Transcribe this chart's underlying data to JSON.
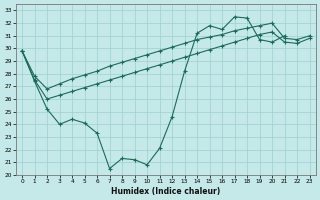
{
  "xlabel": "Humidex (Indice chaleur)",
  "bg_color": "#c5e8e8",
  "grid_color": "#9dcfcf",
  "line_color": "#1a6b5a",
  "xlim": [
    -0.5,
    23.5
  ],
  "ylim": [
    20,
    33.5
  ],
  "yticks": [
    20,
    21,
    22,
    23,
    24,
    25,
    26,
    27,
    28,
    29,
    30,
    31,
    32,
    33
  ],
  "xticks": [
    0,
    1,
    2,
    3,
    4,
    5,
    6,
    7,
    8,
    9,
    10,
    11,
    12,
    13,
    14,
    15,
    16,
    17,
    18,
    19,
    20,
    21,
    22,
    23
  ],
  "zigzag_x": [
    0,
    1,
    2,
    3,
    4,
    5,
    6,
    7,
    8,
    9,
    10,
    11,
    12,
    13,
    14,
    15,
    16,
    17,
    18,
    19,
    20,
    21
  ],
  "zigzag_y": [
    29.8,
    27.4,
    25.2,
    24.0,
    24.4,
    24.1,
    23.3,
    20.5,
    21.3,
    21.2,
    20.8,
    22.1,
    24.6,
    28.2,
    31.2,
    31.8,
    31.5,
    32.5,
    32.4,
    30.7,
    30.5,
    31.0
  ],
  "line_upper_x": [
    0,
    1,
    2,
    3,
    4,
    5,
    6,
    7,
    8,
    9,
    10,
    11,
    12,
    13,
    14,
    15,
    16,
    17,
    18,
    19,
    20,
    21,
    22,
    23
  ],
  "line_upper_y": [
    29.8,
    27.8,
    26.8,
    27.2,
    27.6,
    27.9,
    28.2,
    28.6,
    28.9,
    29.2,
    29.5,
    29.8,
    30.1,
    30.4,
    30.7,
    30.9,
    31.1,
    31.4,
    31.6,
    31.8,
    32.0,
    30.8,
    30.7,
    31.0
  ],
  "line_lower_x": [
    0,
    1,
    2,
    3,
    4,
    5,
    6,
    7,
    8,
    9,
    10,
    11,
    12,
    13,
    14,
    15,
    16,
    17,
    18,
    19,
    20,
    21,
    22,
    23
  ],
  "line_lower_y": [
    29.8,
    27.5,
    26.0,
    26.3,
    26.6,
    26.9,
    27.2,
    27.5,
    27.8,
    28.1,
    28.4,
    28.7,
    29.0,
    29.3,
    29.6,
    29.9,
    30.2,
    30.5,
    30.8,
    31.1,
    31.3,
    30.5,
    30.4,
    30.8
  ]
}
